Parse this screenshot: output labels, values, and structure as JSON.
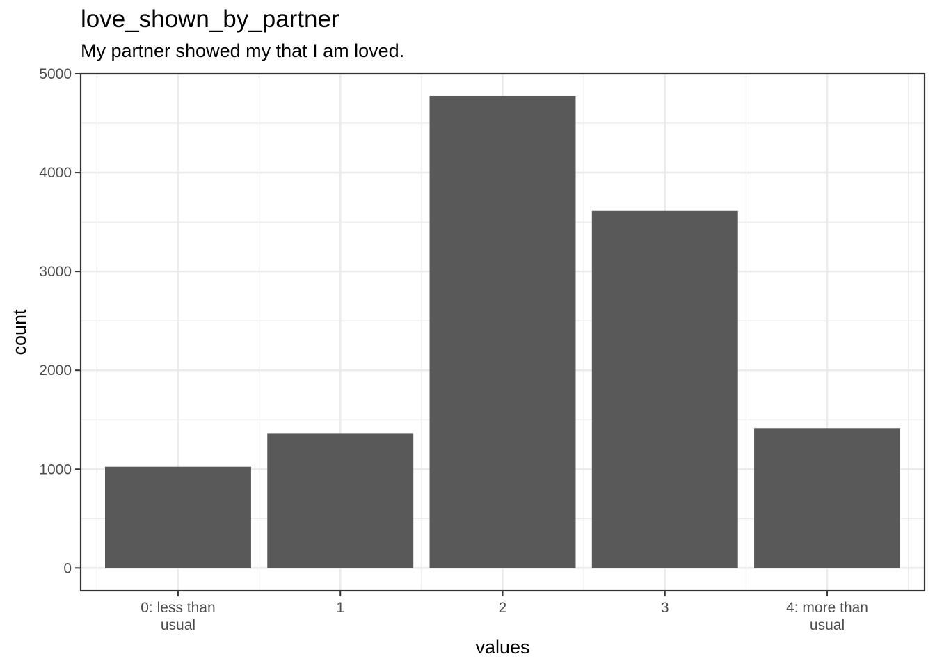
{
  "chart_data": {
    "type": "bar",
    "title": "love_shown_by_partner",
    "subtitle": "My partner showed my that I am loved.",
    "xlabel": "values",
    "ylabel": "count",
    "categories": [
      "0: less than\nusual",
      "1",
      "2",
      "3",
      "4: more than\nusual"
    ],
    "values": [
      1025,
      1365,
      4775,
      3615,
      1415
    ],
    "ylim": [
      -230,
      5000
    ],
    "yticks": [
      0,
      1000,
      2000,
      3000,
      4000,
      5000
    ],
    "grid": true,
    "bar_color": "#595959",
    "grid_color": "#ebebeb",
    "panel_border_color": "#333333"
  }
}
